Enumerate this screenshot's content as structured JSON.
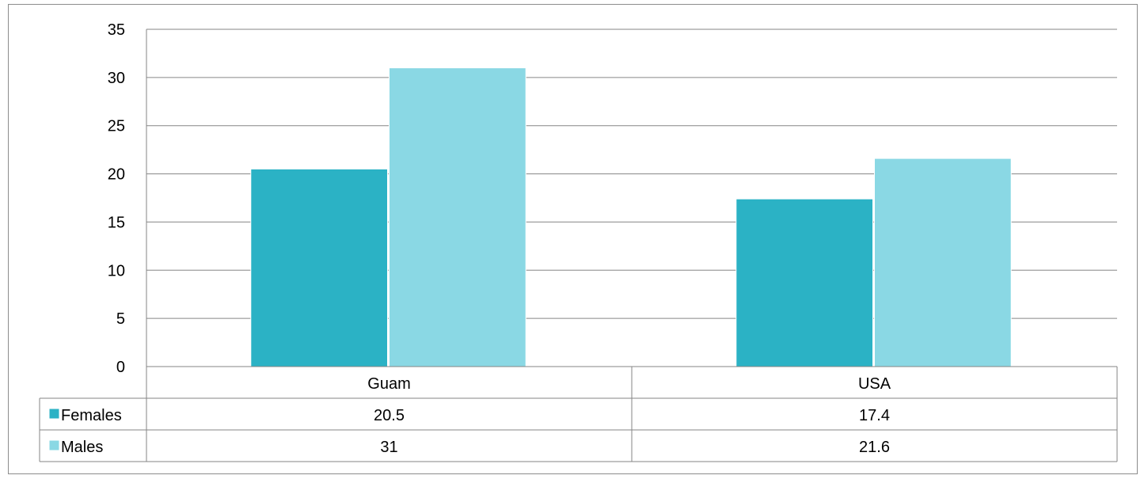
{
  "chart_data": {
    "type": "bar",
    "title": "",
    "xlabel": "",
    "ylabel": "",
    "categories": [
      "Guam",
      "USA"
    ],
    "series": [
      {
        "name": "Females",
        "values": [
          20.5,
          17.4
        ],
        "color": "#2BB2C5"
      },
      {
        "name": "Males",
        "values": [
          31,
          21.6
        ],
        "color": "#8AD8E4"
      }
    ],
    "ylim": [
      0,
      35
    ],
    "yticks": [
      0,
      5,
      10,
      15,
      20,
      25,
      30,
      35
    ],
    "grid": true,
    "legend": "data-table",
    "data_table": {
      "rows": [
        {
          "label": "Females",
          "values": [
            "20.5",
            "17.4"
          ]
        },
        {
          "label": "Males",
          "values": [
            "31",
            "21.6"
          ]
        }
      ]
    }
  }
}
